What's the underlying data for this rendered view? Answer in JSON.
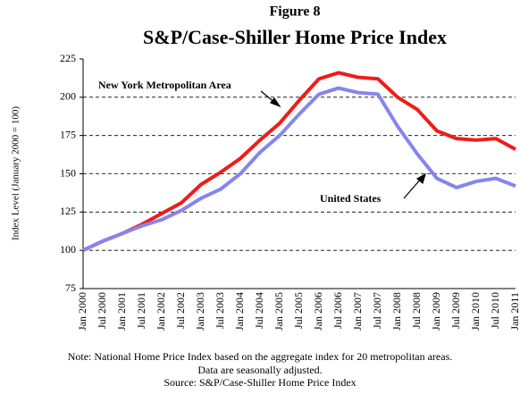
{
  "chart_data": {
    "type": "line",
    "supertitle": "Figure 8",
    "title": "S&P/Case-Shiller Home Price Index",
    "ylabel": "Index Level (January 2000 = 100)",
    "categories": [
      "Jan 2000",
      "Jul 2000",
      "Jan 2001",
      "Jul 2001",
      "Jan 2002",
      "Jul 2002",
      "Jan 2003",
      "Jul 2003",
      "Jan 2004",
      "Jul 2004",
      "Jan 2005",
      "Jul 2005",
      "Jan 2006",
      "Jul 2006",
      "Jan 2007",
      "Jul 2007",
      "Jan 2008",
      "Jul 2008",
      "Jan 2009",
      "Jul 2009",
      "Jan 2010",
      "Jul 2010",
      "Jan 2011"
    ],
    "series": [
      {
        "name": "New York Metropolitan Area",
        "color": "#ee1c1c",
        "values": [
          100,
          106,
          111,
          117,
          124,
          131,
          143,
          151,
          160,
          172,
          183,
          198,
          212,
          216,
          213,
          212,
          200,
          192,
          178,
          173,
          172,
          173,
          166
        ]
      },
      {
        "name": "United States",
        "color": "#8585ee",
        "values": [
          100,
          106,
          111,
          116,
          120,
          126,
          134,
          140,
          150,
          164,
          175,
          189,
          202,
          206,
          203,
          202,
          181,
          163,
          147,
          141,
          145,
          147,
          142
        ]
      }
    ],
    "ylim": [
      75,
      225
    ],
    "yticks": [
      75,
      100,
      125,
      150,
      175,
      200,
      225
    ],
    "grid": true,
    "notes": [
      "Note: National Home Price Index based on the aggregate index for 20 metropolitan areas.",
      "Data are seasonally adjusted.",
      "Source: S&P/Case-Shiller Home Price Index"
    ]
  }
}
